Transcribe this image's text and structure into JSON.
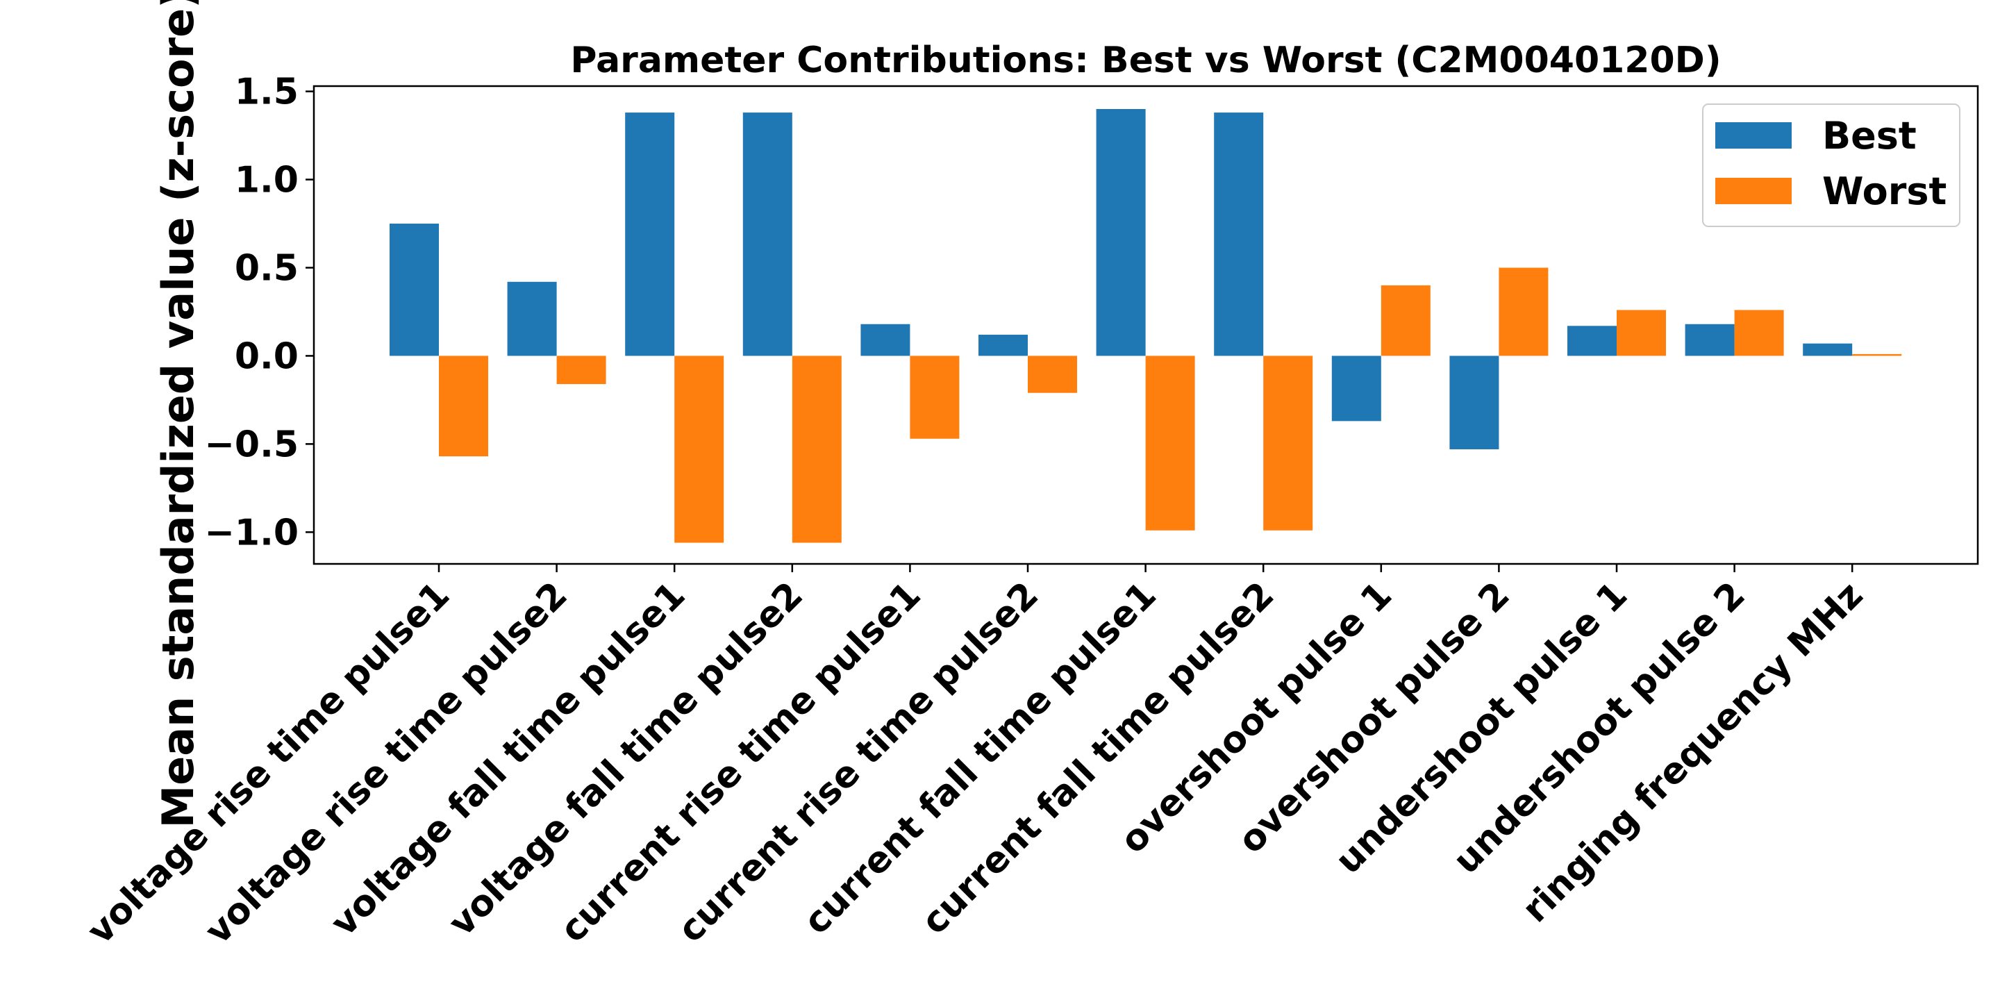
{
  "chart_data": {
    "type": "bar",
    "title": "Parameter Contributions: Best vs Worst (C2M0040120D)",
    "xlabel": "",
    "ylabel": "Mean standardized value (z-score)",
    "ylim": [
      -1.18,
      1.53
    ],
    "yticks": [
      {
        "value": 1.5,
        "label": "1.5"
      },
      {
        "value": 1.0,
        "label": "1.0"
      },
      {
        "value": 0.5,
        "label": "0.5"
      },
      {
        "value": 0.0,
        "label": "0.0"
      },
      {
        "value": -0.5,
        "label": "−0.5"
      },
      {
        "value": -1.0,
        "label": "−1.0"
      }
    ],
    "categories": [
      "voltage rise time pulse1",
      "voltage rise time pulse2",
      "voltage fall time pulse1",
      "voltage fall time pulse2",
      "current rise time pulse1",
      "current rise time pulse2",
      "current fall time pulse1",
      "current fall time pulse2",
      "overshoot pulse 1",
      "overshoot pulse 2",
      "undershoot pulse 1",
      "undershoot pulse 2",
      "ringing frequency MHz"
    ],
    "series": [
      {
        "name": "Best",
        "color": "#1f77b4",
        "values": [
          0.75,
          0.42,
          1.38,
          1.38,
          0.18,
          0.12,
          1.4,
          1.38,
          -0.37,
          -0.53,
          0.17,
          0.18,
          0.07
        ]
      },
      {
        "name": "Worst",
        "color": "#ff7f0e",
        "values": [
          -0.57,
          -0.16,
          -1.06,
          -1.06,
          -0.47,
          -0.21,
          -0.99,
          -0.99,
          0.4,
          0.5,
          0.26,
          0.26,
          0.01
        ]
      }
    ],
    "grid": false,
    "legend_position": "top-right"
  }
}
